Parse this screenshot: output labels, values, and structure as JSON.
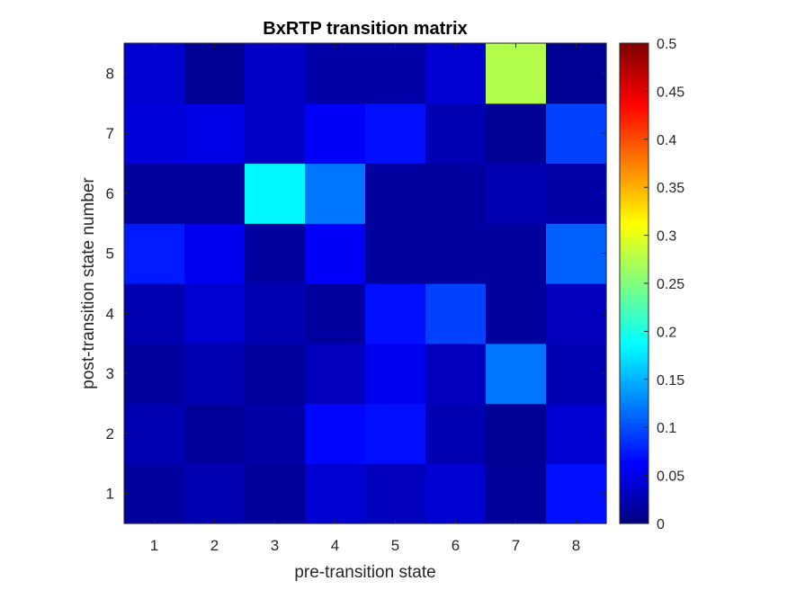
{
  "chart_data": {
    "type": "heatmap",
    "title": "BxRTP transition matrix",
    "xlabel": "pre-transition state",
    "ylabel": "post-transition state number",
    "x_categories": [
      "1",
      "2",
      "3",
      "4",
      "5",
      "6",
      "7",
      "8"
    ],
    "y_categories": [
      "1",
      "2",
      "3",
      "4",
      "5",
      "6",
      "7",
      "8"
    ],
    "colormap": "jet",
    "clim": [
      0,
      0.5
    ],
    "colorbar_ticks": [
      "0",
      "0.05",
      "0.1",
      "0.15",
      "0.2",
      "0.25",
      "0.3",
      "0.35",
      "0.4",
      "0.45",
      "0.5"
    ],
    "values": [
      [
        0.015,
        0.025,
        0.012,
        0.04,
        0.03,
        0.04,
        0.012,
        0.07
      ],
      [
        0.025,
        0.012,
        0.02,
        0.065,
        0.07,
        0.025,
        0.01,
        0.04
      ],
      [
        0.015,
        0.025,
        0.015,
        0.03,
        0.055,
        0.03,
        0.12,
        0.025
      ],
      [
        0.025,
        0.04,
        0.025,
        0.015,
        0.07,
        0.095,
        0.015,
        0.03
      ],
      [
        0.075,
        0.055,
        0.015,
        0.06,
        0.015,
        0.015,
        0.015,
        0.11
      ],
      [
        0.015,
        0.015,
        0.185,
        0.12,
        0.015,
        0.015,
        0.025,
        0.02
      ],
      [
        0.045,
        0.05,
        0.035,
        0.06,
        0.07,
        0.025,
        0.01,
        0.095
      ],
      [
        0.04,
        0.01,
        0.035,
        0.02,
        0.02,
        0.04,
        0.275,
        0.01
      ]
    ]
  }
}
